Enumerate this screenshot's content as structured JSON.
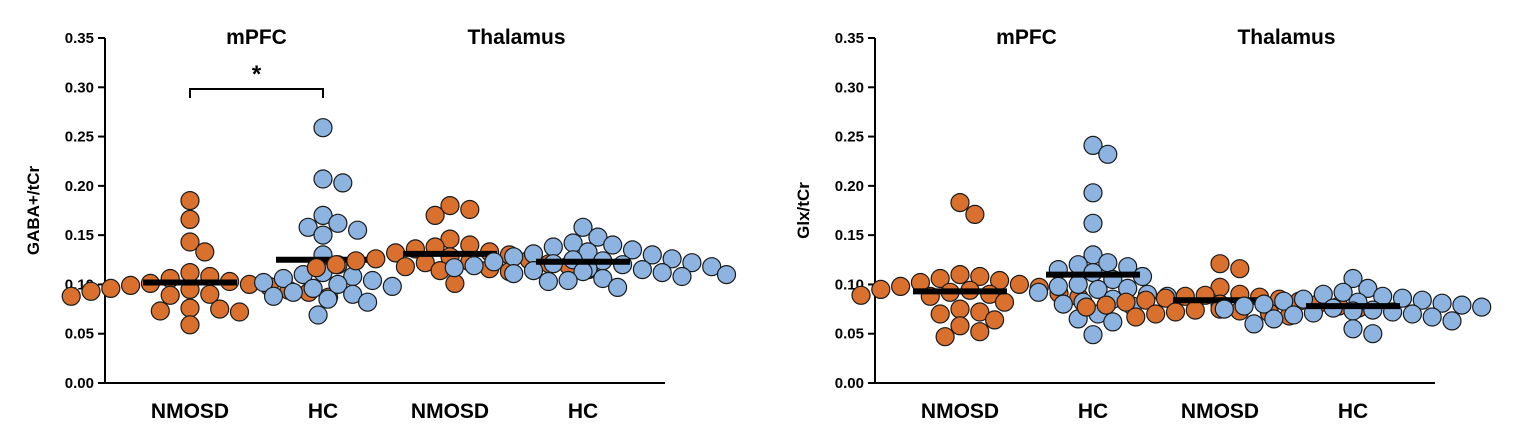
{
  "colors": {
    "NMOSD": "#d9702e",
    "HC": "#8db4e0"
  },
  "chart_data": [
    {
      "type": "scatter",
      "ylabel": "GABA+/tCr",
      "ylim": [
        0,
        0.35
      ],
      "yticks": [
        "0.00",
        "0.05",
        "0.10",
        "0.15",
        "0.20",
        "0.25",
        "0.30",
        "0.35"
      ],
      "regions": [
        "mPFC",
        "Thalamus"
      ],
      "categories": [
        "NMOSD",
        "HC",
        "NMOSD",
        "HC"
      ],
      "groups": [
        {
          "region": "mPFC",
          "category": "NMOSD",
          "mean": 0.102,
          "values": [
            0.185,
            0.166,
            0.143,
            0.133,
            0.112,
            0.108,
            0.106,
            0.103,
            0.101,
            0.1,
            0.099,
            0.098,
            0.096,
            0.095,
            0.094,
            0.093,
            0.092,
            0.09,
            0.089,
            0.088,
            0.087,
            0.076,
            0.075,
            0.073,
            0.072,
            0.059
          ]
        },
        {
          "region": "mPFC",
          "category": "HC",
          "mean": 0.125,
          "values": [
            0.259,
            0.207,
            0.203,
            0.17,
            0.162,
            0.158,
            0.155,
            0.15,
            0.13,
            0.12,
            0.112,
            0.11,
            0.108,
            0.106,
            0.104,
            0.102,
            0.1,
            0.098,
            0.096,
            0.092,
            0.09,
            0.088,
            0.085,
            0.082,
            0.069
          ]
        },
        {
          "region": "Thalamus",
          "category": "NMOSD",
          "mean": 0.131,
          "values": [
            0.18,
            0.176,
            0.17,
            0.146,
            0.14,
            0.138,
            0.136,
            0.133,
            0.132,
            0.13,
            0.128,
            0.126,
            0.125,
            0.124,
            0.123,
            0.122,
            0.121,
            0.12,
            0.119,
            0.118,
            0.117,
            0.116,
            0.115,
            0.114,
            0.113,
            0.101
          ]
        },
        {
          "region": "Thalamus",
          "category": "HC",
          "mean": 0.123,
          "values": [
            0.158,
            0.148,
            0.142,
            0.14,
            0.138,
            0.135,
            0.133,
            0.131,
            0.13,
            0.128,
            0.126,
            0.125,
            0.124,
            0.123,
            0.122,
            0.121,
            0.12,
            0.119,
            0.118,
            0.117,
            0.116,
            0.115,
            0.114,
            0.113,
            0.112,
            0.111,
            0.11,
            0.108,
            0.106,
            0.104,
            0.103,
            0.097
          ]
        }
      ],
      "significance": [
        {
          "from": 0,
          "to": 1,
          "label": "*"
        }
      ]
    },
    {
      "type": "scatter",
      "ylabel": "Glx/tCr",
      "ylim": [
        0,
        0.35
      ],
      "yticks": [
        "0.00",
        "0.05",
        "0.10",
        "0.15",
        "0.20",
        "0.25",
        "0.30",
        "0.35"
      ],
      "regions": [
        "mPFC",
        "Thalamus"
      ],
      "categories": [
        "NMOSD",
        "HC",
        "NMOSD",
        "HC"
      ],
      "groups": [
        {
          "region": "mPFC",
          "category": "NMOSD",
          "mean": 0.093,
          "values": [
            0.183,
            0.171,
            0.11,
            0.108,
            0.106,
            0.104,
            0.102,
            0.1,
            0.098,
            0.097,
            0.095,
            0.094,
            0.092,
            0.091,
            0.09,
            0.089,
            0.088,
            0.087,
            0.082,
            0.075,
            0.072,
            0.07,
            0.064,
            0.058,
            0.052,
            0.047
          ]
        },
        {
          "region": "mPFC",
          "category": "HC",
          "mean": 0.11,
          "values": [
            0.241,
            0.232,
            0.193,
            0.162,
            0.13,
            0.122,
            0.12,
            0.118,
            0.115,
            0.112,
            0.108,
            0.105,
            0.1,
            0.098,
            0.096,
            0.095,
            0.092,
            0.09,
            0.088,
            0.085,
            0.082,
            0.08,
            0.078,
            0.07,
            0.065,
            0.062,
            0.049
          ]
        },
        {
          "region": "Thalamus",
          "category": "NMOSD",
          "mean": 0.084,
          "values": [
            0.121,
            0.116,
            0.097,
            0.09,
            0.089,
            0.088,
            0.087,
            0.086,
            0.085,
            0.084,
            0.083,
            0.082,
            0.081,
            0.08,
            0.079,
            0.078,
            0.077,
            0.076,
            0.075,
            0.074,
            0.073,
            0.072,
            0.071,
            0.07,
            0.068,
            0.067
          ]
        },
        {
          "region": "Thalamus",
          "category": "HC",
          "mean": 0.078,
          "values": [
            0.106,
            0.096,
            0.092,
            0.09,
            0.088,
            0.086,
            0.085,
            0.084,
            0.083,
            0.082,
            0.081,
            0.08,
            0.079,
            0.078,
            0.077,
            0.076,
            0.075,
            0.074,
            0.073,
            0.072,
            0.071,
            0.07,
            0.069,
            0.067,
            0.065,
            0.063,
            0.06,
            0.055,
            0.05
          ]
        }
      ],
      "significance": []
    }
  ]
}
